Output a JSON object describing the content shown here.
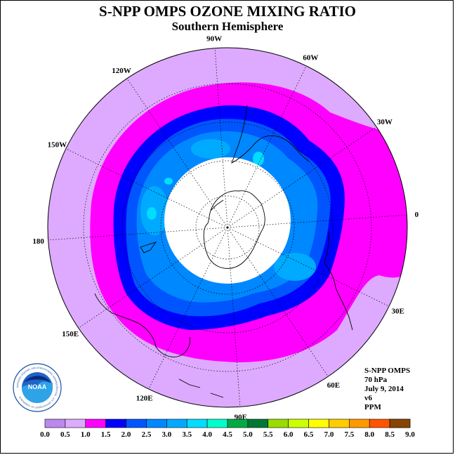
{
  "title": "S-NPP OMPS OZONE MIXING RATIO",
  "subtitle": "Southern Hemisphere",
  "info": {
    "instrument": "S-NPP OMPS",
    "level": "70 hPa",
    "date": "July 9, 2014",
    "version": "v6",
    "units": "PPM"
  },
  "logo_text": "NOAA",
  "logo_ring_text": "NATIONAL OCEANIC AND ATMOSPHERIC ADMINISTRATION · U.S. DEPARTMENT OF COMMERCE",
  "longitude_labels": [
    "90W",
    "60W",
    "30W",
    "0",
    "30E",
    "60E",
    "90E",
    "120E",
    "150E",
    "180",
    "150W",
    "120W"
  ],
  "legend": {
    "ticks": [
      "0.0",
      "0.5",
      "1.0",
      "1.5",
      "2.0",
      "2.5",
      "3.0",
      "3.5",
      "4.0",
      "4.5",
      "5.0",
      "5.5",
      "6.0",
      "6.5",
      "7.0",
      "7.5",
      "8.0",
      "8.5",
      "9.0"
    ],
    "colors": [
      "#bb88ee",
      "#ddaaff",
      "#ff00ff",
      "#0000ff",
      "#0055ff",
      "#0088ff",
      "#00aaff",
      "#00ddff",
      "#00ffcc",
      "#00aa44",
      "#007733",
      "#99dd00",
      "#ccff00",
      "#ffff00",
      "#ffcc00",
      "#ff9900",
      "#ff5500",
      "#ee0000",
      "#884400"
    ]
  },
  "map_data": {
    "projection": "south-polar-stereographic",
    "no_data_region": "polar night cap around the South Pole",
    "contour_bands_ppm": [
      {
        "range": "0.5-1.0",
        "color": "#ddaaff"
      },
      {
        "range": "1.0-1.5",
        "color": "#ff00ff"
      },
      {
        "range": "1.5-2.0",
        "color": "#0000ff"
      },
      {
        "range": "2.0-2.5",
        "color": "#0055ff"
      },
      {
        "range": "2.5-3.0",
        "color": "#0088ff"
      },
      {
        "range": "3.0-3.5",
        "color": "#00aaff"
      },
      {
        "range": "3.5-4.0",
        "color": "#00ddff"
      }
    ]
  }
}
